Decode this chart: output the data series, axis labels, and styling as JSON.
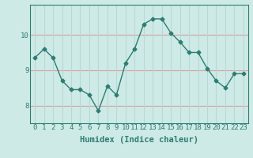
{
  "xlabel": "Humidex (Indice chaleur)",
  "ylabel": "",
  "x": [
    0,
    1,
    2,
    3,
    4,
    5,
    6,
    7,
    8,
    9,
    10,
    11,
    12,
    13,
    14,
    15,
    16,
    17,
    18,
    19,
    20,
    21,
    22,
    23
  ],
  "y": [
    9.35,
    9.6,
    9.35,
    8.7,
    8.45,
    8.45,
    8.3,
    7.85,
    8.55,
    8.3,
    9.2,
    9.6,
    10.3,
    10.45,
    10.45,
    10.05,
    9.8,
    9.5,
    9.5,
    9.05,
    8.7,
    8.5,
    8.9,
    8.9
  ],
  "line_color": "#2d7d72",
  "marker": "D",
  "markersize": 2.5,
  "linewidth": 1.0,
  "bg_color": "#ceeae6",
  "grid_color_h": "#d4a0a0",
  "grid_color_v": "#b8d8d4",
  "tick_color": "#2d7d72",
  "label_color": "#2d7d72",
  "yticks": [
    8,
    9,
    10
  ],
  "ylim": [
    7.5,
    10.85
  ],
  "xlim": [
    -0.5,
    23.5
  ],
  "xlabel_fontsize": 7.5,
  "tick_fontsize": 6.5
}
